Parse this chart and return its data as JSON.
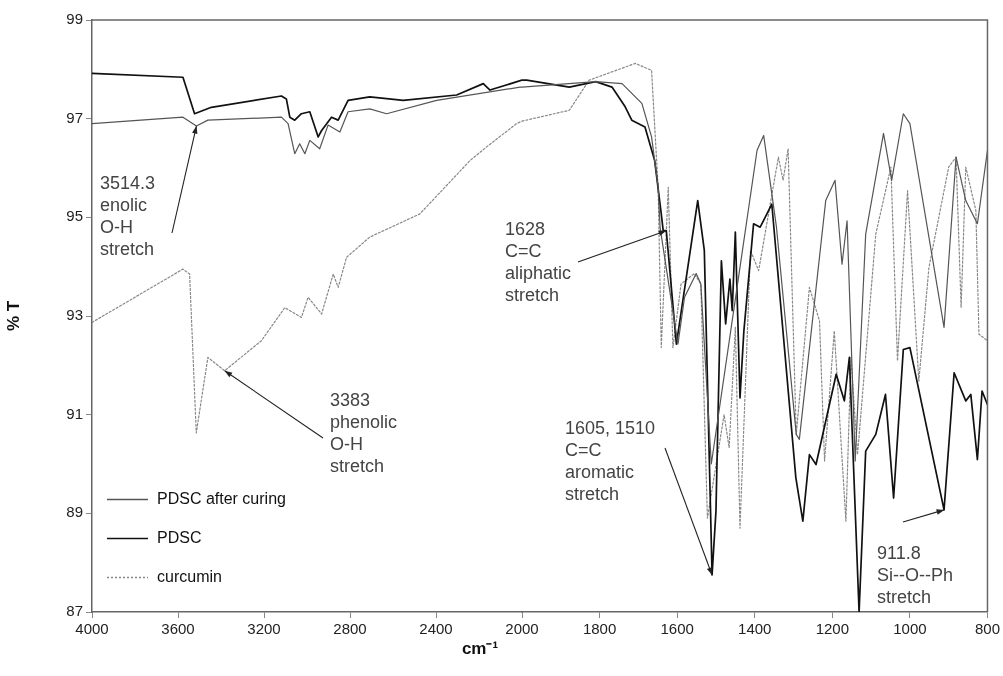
{
  "chart_data": [
    {
      "type": "line",
      "xlabel": "cm⁻¹",
      "ylabel": "% T",
      "xlim": [
        4000,
        2000
      ],
      "xticks": [
        4000,
        3600,
        3200,
        2800,
        2400,
        2000
      ],
      "ylim": [
        87,
        99
      ],
      "yticks": [
        87,
        89,
        91,
        93,
        95,
        97,
        99
      ],
      "legend": "bottom left",
      "marker": "none",
      "series": [
        {
          "name": "PDSC after curing",
          "color": "#555555",
          "line_style": "solid",
          "x": [
            4000,
            3577,
            3514.3,
            3461,
            3119,
            3088,
            3057,
            3034,
            3010,
            2987,
            2941,
            2902,
            2847,
            2809,
            2708,
            2630,
            2397,
            2009,
            2000
          ],
          "values": [
            96.9,
            97.03,
            96.85,
            96.97,
            97.03,
            96.9,
            96.29,
            96.49,
            96.29,
            96.56,
            96.39,
            96.87,
            96.73,
            97.14,
            97.2,
            97.1,
            97.37,
            97.64,
            97.64
          ]
        },
        {
          "name": "PDSC",
          "color": "#111111",
          "line_style": "solid",
          "x": [
            4000,
            3577,
            3523,
            3445,
            3119,
            3096,
            3080,
            3057,
            3026,
            2987,
            2948,
            2932,
            2886,
            2855,
            2809,
            2708,
            2552,
            2304,
            2180,
            2149,
            2000
          ],
          "values": [
            97.92,
            97.84,
            97.1,
            97.23,
            97.46,
            97.4,
            97.03,
            96.97,
            97.1,
            97.14,
            96.63,
            96.76,
            97.03,
            96.97,
            97.37,
            97.44,
            97.37,
            97.48,
            97.71,
            97.58,
            97.78
          ]
        },
        {
          "name": "curcumin",
          "color": "#888888",
          "line_style": "dotted",
          "x": [
            4000,
            3577,
            3546,
            3515,
            3461,
            3383,
            3212,
            3103,
            3026,
            2995,
            2932,
            2878,
            2855,
            2816,
            2708,
            2475,
            2242,
            2164,
            2025,
            2000
          ],
          "values": [
            92.87,
            93.95,
            93.85,
            90.63,
            92.16,
            91.89,
            92.5,
            93.17,
            92.97,
            93.38,
            93.04,
            93.85,
            93.58,
            94.19,
            94.6,
            95.07,
            96.15,
            96.43,
            96.9,
            96.95
          ]
        }
      ],
      "annotations": [
        {
          "text": "3514.3\nenolic\nO-H\nstretch",
          "x": 3514.3,
          "y": 96.85
        },
        {
          "text": "3383\nphenolic\nO-H\nstretch",
          "x": 3383,
          "y": 91.89
        }
      ]
    },
    {
      "type": "line",
      "xlim": [
        2000,
        800
      ],
      "xticks": [
        {
          "value": 2000,
          "label": null
        },
        1800,
        1600,
        1400,
        1200,
        1000,
        800
      ],
      "ylim": [
        87,
        99
      ],
      "yticks": [
        87,
        89,
        91,
        93,
        95,
        97,
        99
      ],
      "tick_labels": "x",
      "marker": "none",
      "series": [
        {
          "color": "#555555",
          "line_style": "solid",
          "x": [
            2000,
            1810,
            1742,
            1691,
            1666,
            1649,
            1644,
            1598,
            1581,
            1551,
            1539,
            1512,
            1394,
            1377,
            1344,
            1293,
            1285,
            1217,
            1193,
            1175,
            1162,
            1141,
            1114,
            1068,
            1047,
            1017,
            1000,
            912,
            881,
            856,
            826,
            800
          ],
          "values": [
            97.64,
            97.75,
            97.71,
            97.31,
            96.63,
            95.61,
            94.79,
            92.43,
            93.38,
            93.86,
            93.65,
            90.0,
            96.36,
            96.66,
            94.8,
            90.6,
            90.5,
            95.34,
            95.75,
            94.05,
            94.93,
            90.06,
            94.66,
            96.7,
            95.75,
            97.1,
            96.9,
            92.77,
            96.22,
            95.34,
            94.87,
            96.36
          ]
        },
        {
          "color": "#111111",
          "line_style": "solid",
          "x": [
            2000,
            1988,
            1878,
            1810,
            1768,
            1734,
            1717,
            1683,
            1658,
            1641,
            1636,
            1628,
            1602,
            1547,
            1530,
            1510,
            1500,
            1486,
            1475,
            1464,
            1458,
            1450,
            1438,
            1428,
            1403,
            1386,
            1356,
            1294,
            1276,
            1259,
            1242,
            1190,
            1169,
            1156,
            1131,
            1114,
            1088,
            1063,
            1042,
            1017,
            1000,
            912,
            886,
            856,
            843,
            826,
            814,
            800
          ],
          "values": [
            97.78,
            97.78,
            97.64,
            97.75,
            97.64,
            97.24,
            96.97,
            96.83,
            96.15,
            95.07,
            94.73,
            94.73,
            92.43,
            95.34,
            94.33,
            87.75,
            89.04,
            94.12,
            92.84,
            93.75,
            93.11,
            94.7,
            91.34,
            92.7,
            94.87,
            94.8,
            95.27,
            89.72,
            88.84,
            90.19,
            89.99,
            91.82,
            91.28,
            92.16,
            87.0,
            90.26,
            90.6,
            91.41,
            89.31,
            92.32,
            92.36,
            89.07,
            91.85,
            91.28,
            91.41,
            90.09,
            91.48,
            91.2
          ]
        },
        {
          "color": "#888888",
          "line_style": "dotted",
          "x": [
            2000,
            1878,
            1827,
            1708,
            1666,
            1649,
            1641,
            1623,
            1611,
            1590,
            1556,
            1539,
            1522,
            1479,
            1466,
            1450,
            1438,
            1411,
            1390,
            1339,
            1327,
            1314,
            1293,
            1259,
            1233,
            1220,
            1195,
            1165,
            1152,
            1135,
            1088,
            1049,
            1032,
            1006,
            977,
            951,
            900,
            881,
            868,
            856,
            830,
            822,
            800
          ],
          "values": [
            96.95,
            97.17,
            97.78,
            98.12,
            97.98,
            95.6,
            92.36,
            95.61,
            92.36,
            93.65,
            93.86,
            93.65,
            88.9,
            91.0,
            90.33,
            92.77,
            88.7,
            94.33,
            93.92,
            96.22,
            95.75,
            96.39,
            90.6,
            93.58,
            92.9,
            90.06,
            92.7,
            88.84,
            92.16,
            90.19,
            94.66,
            96.02,
            92.09,
            95.54,
            91.68,
            93.98,
            96.02,
            96.22,
            93.17,
            96.02,
            95.14,
            92.63,
            92.5
          ]
        }
      ],
      "annotations": [
        {
          "text": "1628\nC=C\naliphatic\nstretch",
          "x": 1628,
          "y": 94.73
        },
        {
          "text": "1605, 1510\nC=C\naromatic\nstretch",
          "x": 1510,
          "y": 87.75
        },
        {
          "text": "911.8\nSi--O--Ph\nstretch",
          "x": 911.8,
          "y": 89.07
        }
      ]
    }
  ]
}
